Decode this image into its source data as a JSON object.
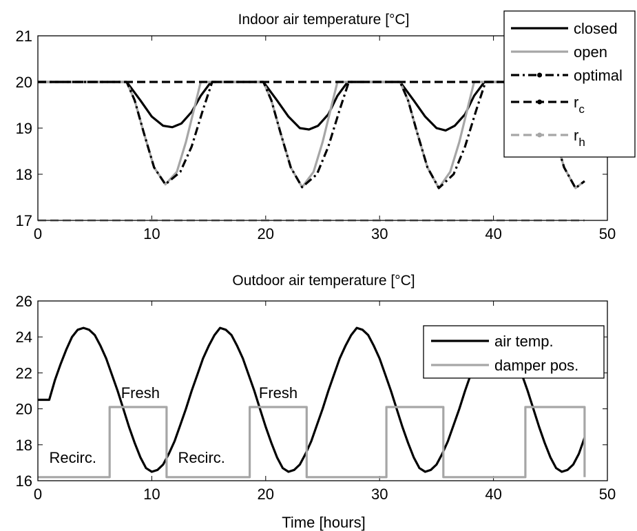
{
  "chart_data": [
    {
      "type": "line",
      "title": "Indoor air temperature [°C]",
      "xlabel": "",
      "ylabel": "",
      "xlim": [
        0,
        50
      ],
      "ylim": [
        17,
        21
      ],
      "xticks": [
        0,
        10,
        20,
        30,
        40,
        50
      ],
      "yticks": [
        17,
        18,
        19,
        20,
        21
      ],
      "grid": false,
      "legend": "top-right",
      "series": [
        {
          "name": "closed",
          "color": "#000000",
          "style": "solid",
          "x": [
            0,
            7.8,
            9,
            10,
            11,
            11.8,
            12.6,
            13.5,
            14.3,
            15.2,
            19.8,
            21,
            22,
            23,
            23.8,
            24.6,
            25.5,
            26.3,
            27.2,
            31.8,
            33,
            34,
            35,
            35.8,
            36.6,
            37.5,
            38.3,
            39.2,
            43.8,
            45,
            46,
            47,
            47.8,
            48
          ],
          "y": [
            20,
            20,
            19.6,
            19.25,
            19.05,
            19.02,
            19.1,
            19.35,
            19.7,
            20,
            20,
            19.6,
            19.25,
            19.0,
            18.97,
            19.05,
            19.3,
            19.7,
            20,
            20,
            19.6,
            19.25,
            19.0,
            18.95,
            19.05,
            19.3,
            19.7,
            20,
            20,
            19.6,
            19.25,
            19.0,
            18.95,
            18.97
          ]
        },
        {
          "name": "open",
          "color": "#a6a6a6",
          "style": "solid",
          "x": [
            0,
            7.8,
            8.5,
            9.3,
            10.2,
            11.2,
            12.2,
            13,
            13.8,
            14.3,
            19.8,
            20.5,
            21.3,
            22.2,
            23.2,
            24.2,
            25,
            25.8,
            26.3,
            31.8,
            32.5,
            33.3,
            34.2,
            35.2,
            36.2,
            37,
            37.8,
            38.3,
            43.8,
            44.5,
            45.3,
            46.2,
            47.2,
            48
          ],
          "y": [
            20,
            20,
            19.6,
            18.9,
            18.15,
            17.78,
            18.05,
            18.7,
            19.5,
            20,
            20,
            19.6,
            18.9,
            18.15,
            17.72,
            18.05,
            18.7,
            19.5,
            20,
            20,
            19.6,
            18.9,
            18.15,
            17.7,
            18.05,
            18.7,
            19.5,
            20,
            20,
            19.6,
            18.9,
            18.15,
            17.7,
            17.85
          ]
        },
        {
          "name": "optimal",
          "color": "#000000",
          "style": "dashdot",
          "x": [
            0,
            7.8,
            8.5,
            9.3,
            10.2,
            11.2,
            12.5,
            13.5,
            14.5,
            15.3,
            19.8,
            20.5,
            21.3,
            22.2,
            23.2,
            24.5,
            25.5,
            26.5,
            27.3,
            31.8,
            32.5,
            33.3,
            34.2,
            35.2,
            36.5,
            37.5,
            38.5,
            39.3,
            43.8,
            44.5,
            45.3,
            46.2,
            47.2,
            48
          ],
          "y": [
            20,
            20,
            19.6,
            18.9,
            18.15,
            17.78,
            18.05,
            18.6,
            19.4,
            20,
            20,
            19.6,
            18.9,
            18.15,
            17.72,
            18.0,
            18.6,
            19.4,
            20,
            20,
            19.6,
            18.9,
            18.15,
            17.7,
            18.0,
            18.6,
            19.4,
            20,
            20,
            19.6,
            18.9,
            18.15,
            17.7,
            17.85
          ]
        },
        {
          "name": "r_c",
          "color": "#000000",
          "style": "dashed",
          "x": [
            0,
            48
          ],
          "y": [
            20,
            20
          ]
        },
        {
          "name": "r_h",
          "color": "#a6a6a6",
          "style": "dashed",
          "x": [
            0,
            48
          ],
          "y": [
            17,
            17
          ]
        }
      ]
    },
    {
      "type": "line",
      "title": "Outdoor air temperature [°C]",
      "xlabel": "Time [hours]",
      "ylabel": "",
      "xlim": [
        0,
        50
      ],
      "ylim": [
        16,
        26
      ],
      "xticks": [
        0,
        10,
        20,
        30,
        40,
        50
      ],
      "yticks": [
        16,
        18,
        20,
        22,
        24,
        26
      ],
      "grid": false,
      "legend": "top-right",
      "series": [
        {
          "name": "air temp.",
          "color": "#000000",
          "style": "solid",
          "x": [
            0,
            1,
            1.5,
            2,
            2.5,
            3,
            3.5,
            4,
            4.5,
            5,
            5.5,
            6,
            6.5,
            7,
            7.5,
            8,
            8.5,
            9,
            9.5,
            10,
            10.5,
            11,
            11.5,
            12,
            12.5,
            13,
            13.5,
            14,
            14.5,
            15,
            15.5,
            16,
            16.5,
            17,
            17.5,
            18,
            18.5,
            19,
            19.5,
            20,
            20.5,
            21,
            21.5,
            22,
            22.5,
            23,
            23.5,
            24,
            24.5,
            25,
            25.5,
            26,
            26.5,
            27,
            27.5,
            28,
            28.5,
            29,
            29.5,
            30,
            30.5,
            31,
            31.5,
            32,
            32.5,
            33,
            33.5,
            34,
            34.5,
            35,
            35.5,
            36,
            36.5,
            37,
            37.5,
            38,
            38.5,
            39,
            39.5,
            40,
            40.5,
            41,
            41.5,
            42,
            42.5,
            43,
            43.5,
            44,
            44.5,
            45,
            45.5,
            46,
            46.5,
            47,
            47.5,
            48
          ],
          "y": [
            20.5,
            20.5,
            21.6,
            22.5,
            23.3,
            24.0,
            24.4,
            24.5,
            24.4,
            24.1,
            23.5,
            22.8,
            21.9,
            21.0,
            20.0,
            19.0,
            18.1,
            17.3,
            16.7,
            16.5,
            16.6,
            16.9,
            17.5,
            18.2,
            19.1,
            20.0,
            21.0,
            21.9,
            22.8,
            23.5,
            24.1,
            24.5,
            24.4,
            24.1,
            23.5,
            22.8,
            21.9,
            21.0,
            20.0,
            19.0,
            18.1,
            17.3,
            16.7,
            16.5,
            16.6,
            16.9,
            17.5,
            18.2,
            19.1,
            20.0,
            21.0,
            21.9,
            22.8,
            23.5,
            24.1,
            24.5,
            24.4,
            24.1,
            23.5,
            22.8,
            21.9,
            21.0,
            20.0,
            19.0,
            18.1,
            17.3,
            16.7,
            16.5,
            16.6,
            16.9,
            17.5,
            18.2,
            19.1,
            20.0,
            21.0,
            21.9,
            22.8,
            23.5,
            24.1,
            24.5,
            24.4,
            24.1,
            23.5,
            22.8,
            21.9,
            21.0,
            20.0,
            19.0,
            18.1,
            17.3,
            16.7,
            16.5,
            16.6,
            16.9,
            17.5,
            18.4
          ]
        },
        {
          "name": "damper pos.",
          "color": "#a6a6a6",
          "style": "solid",
          "x": [
            0,
            6.3,
            6.3,
            11.3,
            11.3,
            18.6,
            18.6,
            23.6,
            23.6,
            30.6,
            30.6,
            35.6,
            35.6,
            42.8,
            42.8,
            48,
            48
          ],
          "y": [
            16.2,
            16.2,
            20.1,
            20.1,
            16.2,
            16.2,
            20.1,
            20.1,
            16.2,
            16.2,
            20.1,
            20.1,
            16.2,
            16.2,
            20.1,
            20.1,
            16.2
          ]
        }
      ],
      "annotations": [
        {
          "text": "Recirc.",
          "x": 1.0,
          "y": 17.0
        },
        {
          "text": "Fresh",
          "x": 7.3,
          "y": 20.6
        },
        {
          "text": "Recirc.",
          "x": 12.3,
          "y": 17.0
        },
        {
          "text": "Fresh",
          "x": 19.4,
          "y": 20.6
        }
      ]
    }
  ]
}
